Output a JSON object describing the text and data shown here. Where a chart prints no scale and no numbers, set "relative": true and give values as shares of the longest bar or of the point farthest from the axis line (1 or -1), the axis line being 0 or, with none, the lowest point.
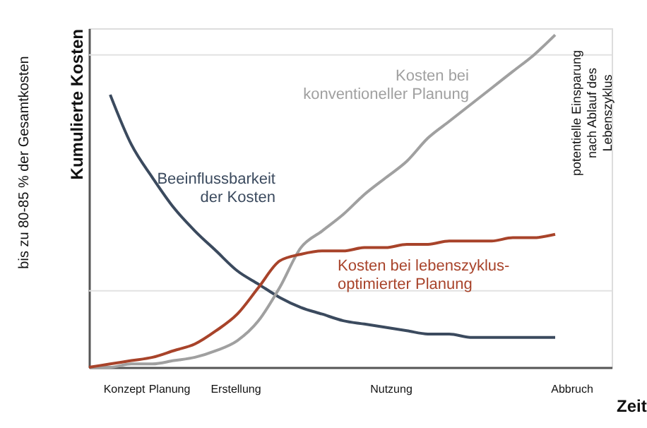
{
  "chart_data": {
    "type": "line",
    "relative": true,
    "ylabel": "Kumulierte Kosten",
    "xlabel": "Zeit",
    "categories": [
      null,
      null,
      null,
      null,
      null,
      null,
      null,
      null,
      null,
      null,
      null,
      null,
      null,
      null,
      null,
      null,
      null,
      null,
      null,
      null,
      null,
      null,
      null
    ],
    "series": [
      {
        "name": "Beeinflussbarkeit\nder Kosten",
        "color": "#3b4a5e",
        "values": [
          null,
          0.82,
          0.67,
          0.57,
          0.48,
          0.41,
          0.35,
          0.29,
          0.25,
          0.21,
          0.18,
          0.16,
          0.14,
          0.13,
          0.12,
          0.11,
          0.1,
          0.1,
          0.09,
          0.09,
          0.09,
          0.09,
          0.09
        ]
      },
      {
        "name": "Kosten bei\nkonventioneller Planung",
        "color": "#a0a0a0",
        "values": [
          0,
          0,
          0.01,
          0.01,
          0.02,
          0.03,
          0.05,
          0.08,
          0.14,
          0.24,
          0.36,
          0.41,
          0.46,
          0.52,
          0.57,
          0.62,
          0.69,
          0.74,
          0.79,
          0.84,
          0.89,
          0.94,
          1.0
        ]
      },
      {
        "name": "Kosten bei lebenszyklus-\noptimierter Planung",
        "color": "#a8432a",
        "values": [
          0,
          0.01,
          0.02,
          0.03,
          0.05,
          0.07,
          0.11,
          0.16,
          0.24,
          0.32,
          0.34,
          0.35,
          0.35,
          0.36,
          0.36,
          0.37,
          0.37,
          0.38,
          0.38,
          0.38,
          0.39,
          0.39,
          0.4
        ]
      }
    ],
    "ref_lines": [
      {
        "axis": "y",
        "value": 0.94,
        "color": "#e2e2e2"
      },
      {
        "axis": "y",
        "value": 0.23,
        "color": "#e2e2e2"
      }
    ],
    "annotations": [
      "bis zu 80-85 % der Gesamtkosten",
      "potentielle Einsparung\nnach Ablauf des\nLebenszyklus",
      "Konzept",
      "Planung",
      "Erstellung",
      "Nutzung",
      "Abbruch"
    ],
    "legend": false,
    "grid": false
  }
}
